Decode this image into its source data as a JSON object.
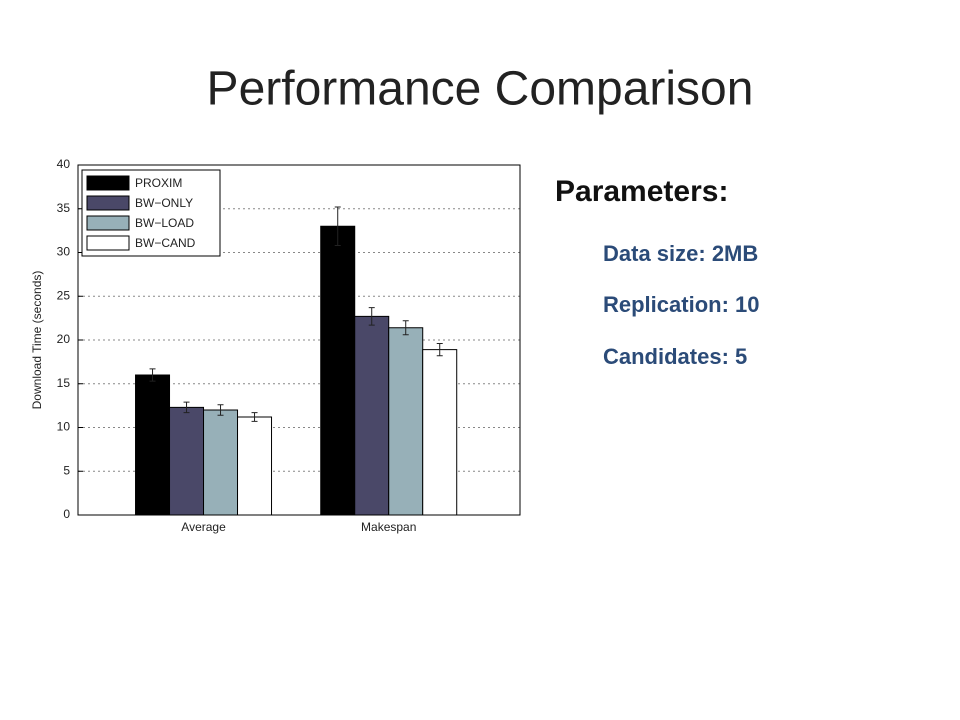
{
  "slide_title": "Performance Comparison",
  "parameters": {
    "heading": "Parameters:",
    "items": [
      "Data size: 2MB",
      "Replication: 10",
      "Candidates: 5"
    ]
  },
  "chart_data": {
    "type": "bar",
    "y_label": "Download Time (seconds)",
    "categories": [
      "Average",
      "Makespan"
    ],
    "series": [
      {
        "name": "PROXIM",
        "color": "#000000",
        "values": [
          16,
          33
        ],
        "errors": [
          0.7,
          2.2
        ]
      },
      {
        "name": "BW−ONLY",
        "color": "#4a4868",
        "values": [
          12.3,
          22.7
        ],
        "errors": [
          0.6,
          1.0
        ]
      },
      {
        "name": "BW−LOAD",
        "color": "#97b0b8",
        "values": [
          12,
          21.4
        ],
        "errors": [
          0.6,
          0.8
        ]
      },
      {
        "name": "BW−CAND",
        "color": "#ffffff",
        "values": [
          11.2,
          18.9
        ],
        "errors": [
          0.5,
          0.7
        ]
      }
    ],
    "ylim": [
      0,
      40
    ],
    "yticks": [
      0,
      5,
      10,
      15,
      20,
      25,
      30,
      35,
      40
    ],
    "grid": true,
    "legend": "upper left"
  }
}
